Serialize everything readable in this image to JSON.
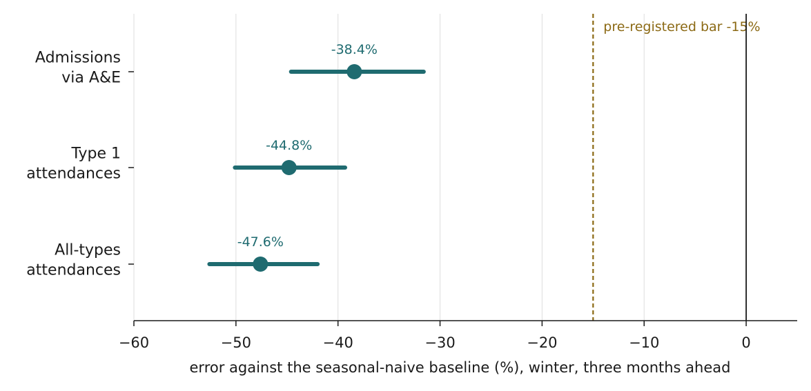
{
  "chart_data": {
    "type": "scatter",
    "style": "forest-plot with horizontal interval lines",
    "categories": [
      [
        "Admissions",
        "via A&E"
      ],
      [
        "Type 1",
        "attendances"
      ],
      [
        "All-types",
        "attendances"
      ]
    ],
    "points": [
      {
        "value": -38.4,
        "low": -44.6,
        "high": -31.6,
        "label": "-38.4%"
      },
      {
        "value": -44.8,
        "low": -50.1,
        "high": -39.3,
        "label": "-44.8%"
      },
      {
        "value": -47.6,
        "low": -52.6,
        "high": -42.0,
        "label": "-47.6%"
      }
    ],
    "xlabel": "error against the seasonal-naive baseline (%), winter, three months ahead",
    "ylabel": "",
    "title": "",
    "xlim": [
      -60,
      5
    ],
    "xticks": [
      -60,
      -50,
      -40,
      -30,
      -20,
      -10,
      0
    ],
    "xtick_labels": [
      "−60",
      "−50",
      "−40",
      "−30",
      "−20",
      "−10",
      "0"
    ],
    "reference_line": {
      "x": -15,
      "label": "pre-registered bar -15%",
      "style": "dashed"
    },
    "zero_line": {
      "x": 0
    },
    "grid": "vertical only",
    "legend": "none",
    "colors": {
      "series": "#1f6b70",
      "reference": "#8b6914",
      "grid": "#dddddd",
      "axis": "#1a1a1a",
      "text": "#1a1a1a"
    }
  }
}
